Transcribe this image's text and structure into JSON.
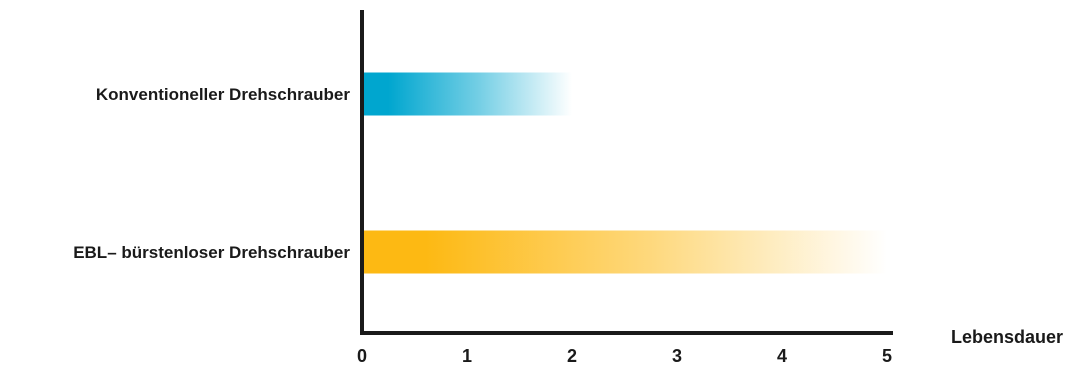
{
  "chart_data": {
    "type": "bar",
    "orientation": "horizontal",
    "categories": [
      "Konventioneller Drehschrauber",
      "EBL– bürstenloser Drehschrauber"
    ],
    "values": [
      2,
      5
    ],
    "xlabel": "Lebensdauer",
    "xlim": [
      0,
      5
    ],
    "xticks": [
      0,
      1,
      2,
      3,
      4,
      5
    ],
    "grid": false,
    "bar_style": "gradient-fade",
    "colors": [
      "#00a6cf",
      "#fdb913"
    ],
    "axis_color": "#1a1a1a"
  }
}
